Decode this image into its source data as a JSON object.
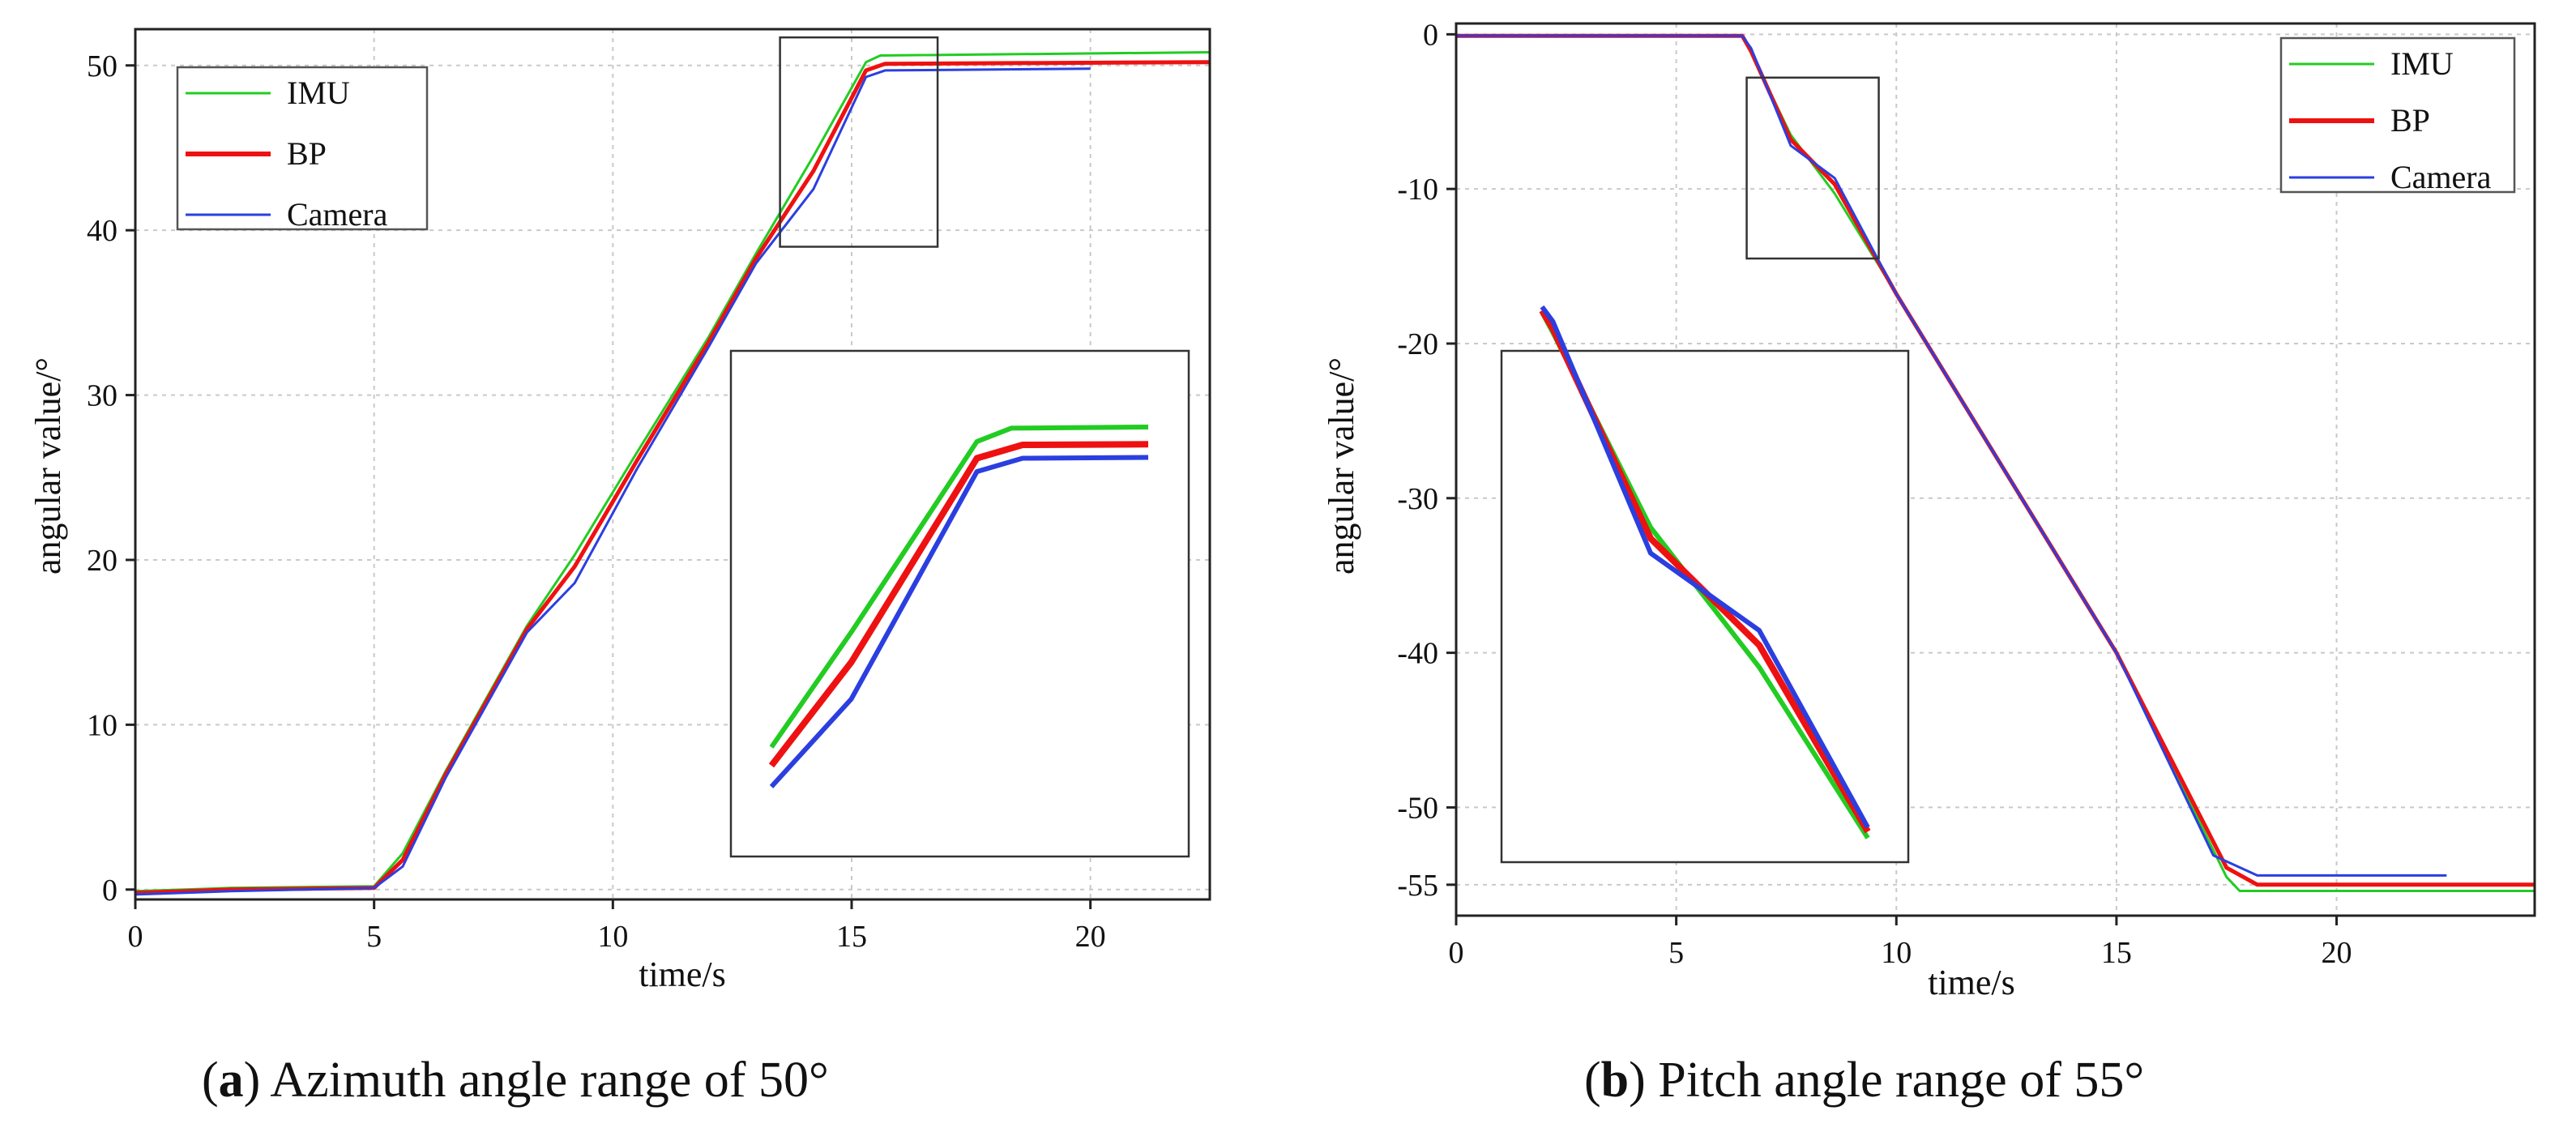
{
  "colors": {
    "imu": "#22cc22",
    "bp": "#ee1111",
    "camera": "#2b3fe0"
  },
  "chart_data": [
    {
      "type": "line",
      "id": "a",
      "caption_label": "a",
      "caption_text": "Azimuth angle range of 50°",
      "xlabel": "time/s",
      "ylabel": "angular value/°",
      "xlim": [
        0,
        22.5
      ],
      "ylim": [
        -0.6,
        52.2
      ],
      "xticks": [
        0,
        5,
        10,
        15,
        20
      ],
      "yticks": [
        0,
        10,
        20,
        30,
        40,
        50
      ],
      "xtick_labels": [
        "0",
        "5",
        "10",
        "15",
        "20"
      ],
      "ytick_labels": [
        "0",
        "10",
        "20",
        "30",
        "40",
        "50"
      ],
      "legend": [
        "IMU",
        "BP",
        "Camera"
      ],
      "legend_position": "top-left",
      "series": [
        {
          "name": "IMU",
          "color_key": "imu",
          "x": [
            0,
            2,
            5,
            5.6,
            6.5,
            8.2,
            9.2,
            10.5,
            12,
            13,
            14.2,
            15.3,
            15.6,
            22.5
          ],
          "y": [
            -0.1,
            0.1,
            0.2,
            2.2,
            7.2,
            16,
            20.3,
            26.5,
            33.5,
            38.6,
            44.5,
            50.2,
            50.6,
            50.8
          ]
        },
        {
          "name": "BP",
          "color_key": "bp",
          "x": [
            0,
            2,
            5,
            5.6,
            6.5,
            8.2,
            9.2,
            10.5,
            12,
            13,
            14.2,
            15.3,
            15.7,
            22.5
          ],
          "y": [
            -0.2,
            0,
            0.1,
            1.8,
            7,
            15.8,
            19.6,
            26,
            33.2,
            38.3,
            43.6,
            49.7,
            50.1,
            50.2
          ]
        },
        {
          "name": "Camera",
          "color_key": "camera",
          "x": [
            0,
            2,
            5,
            5.6,
            6.5,
            8.2,
            9.2,
            10.5,
            12,
            13,
            14.2,
            15.3,
            15.7,
            20
          ],
          "y": [
            -0.3,
            -0.1,
            0.1,
            1.4,
            6.8,
            15.6,
            18.6,
            25.5,
            32.9,
            38,
            42.5,
            49.3,
            49.7,
            49.8
          ]
        }
      ],
      "zoom_box": {
        "xlim": [
          13.5,
          16.8
        ],
        "ylim": [
          39,
          51.7
        ]
      }
    },
    {
      "type": "line",
      "id": "b",
      "caption_label": "b",
      "caption_text": "Pitch angle range of 55°",
      "xlabel": "time/s",
      "ylabel": "angular value/°",
      "xlim": [
        0,
        24.5
      ],
      "ylim": [
        -57,
        0.7
      ],
      "xticks": [
        0,
        5,
        10,
        15,
        20
      ],
      "yticks": [
        0,
        -10,
        -20,
        -30,
        -40,
        -50,
        -55
      ],
      "xtick_labels": [
        "0",
        "5",
        "10",
        "15",
        "20"
      ],
      "ytick_labels": [
        "0",
        "-10",
        "-20",
        "-30",
        "-40",
        "-50",
        "-55"
      ],
      "legend": [
        "IMU",
        "BP",
        "Camera"
      ],
      "legend_position": "top-right",
      "series": [
        {
          "name": "IMU",
          "color_key": "imu",
          "x": [
            0,
            6.5,
            6.7,
            7.6,
            8.6,
            10,
            12.5,
            15,
            17.5,
            17.8,
            24.5
          ],
          "y": [
            -0.1,
            -0.1,
            -1.2,
            -6.5,
            -10.3,
            -16.8,
            -28.4,
            -40,
            -54.5,
            -55.4,
            -55.4
          ]
        },
        {
          "name": "BP",
          "color_key": "bp",
          "x": [
            0,
            6.5,
            6.7,
            7.6,
            8.6,
            10,
            12.5,
            15,
            17.5,
            18.2,
            24.5
          ],
          "y": [
            -0.1,
            -0.1,
            -1.1,
            -6.8,
            -9.7,
            -16.8,
            -28.4,
            -40,
            -53.9,
            -55,
            -55
          ]
        },
        {
          "name": "Camera",
          "color_key": "camera",
          "x": [
            0,
            6.5,
            6.7,
            7.6,
            8.6,
            10,
            12.5,
            15,
            17.2,
            18.2,
            22.5
          ],
          "y": [
            -0.1,
            -0.1,
            -0.9,
            -7.2,
            -9.3,
            -16.8,
            -28.4,
            -40,
            -53.1,
            -54.4,
            -54.4
          ]
        }
      ],
      "zoom_box": {
        "xlim": [
          6.6,
          9.6
        ],
        "ylim": [
          -14.5,
          -2.8
        ]
      }
    }
  ]
}
